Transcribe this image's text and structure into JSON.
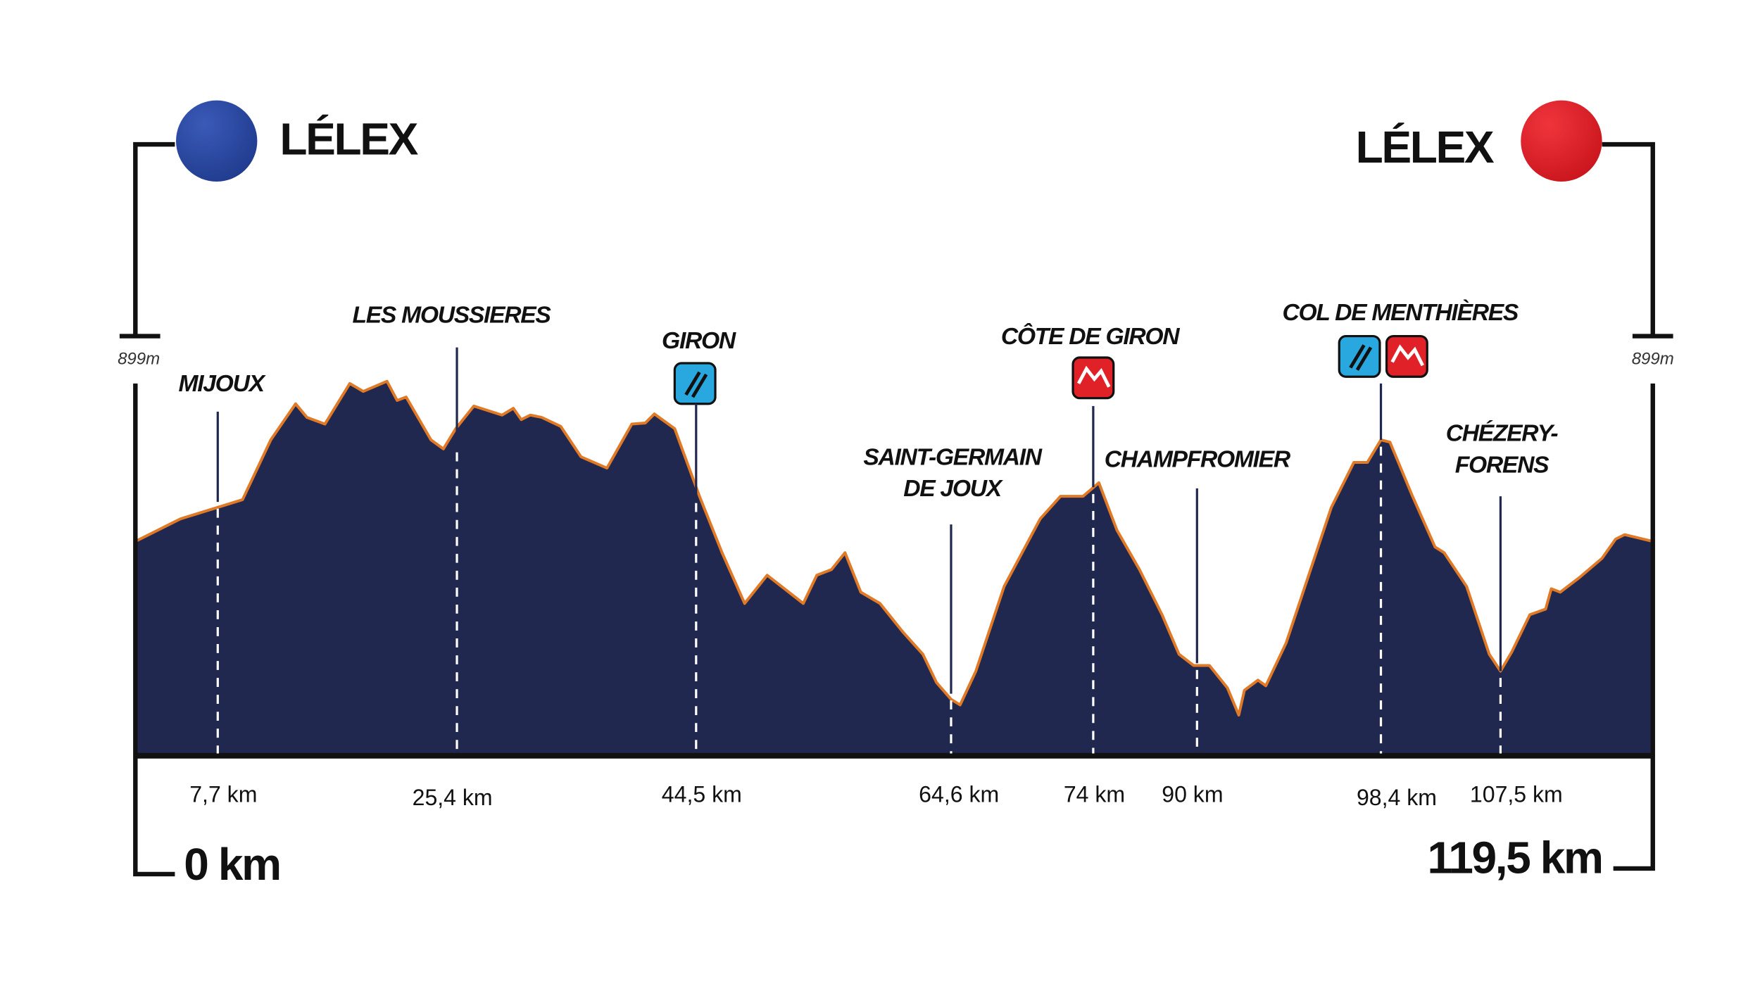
{
  "start": {
    "name": "LÉLEX",
    "distance": "0 km"
  },
  "finish": {
    "name": "LÉLEX",
    "distance": "119,5 km"
  },
  "altitude_labels": [
    "899m",
    "899m"
  ],
  "waypoints": [
    {
      "name": [
        "MIJOUX"
      ],
      "distance": "7,7 km"
    },
    {
      "name": [
        "LES MOUSSIERES"
      ],
      "distance": "25,4 km"
    },
    {
      "name": [
        "GIRON"
      ],
      "distance": "44,5 km"
    },
    {
      "name": [
        "SAINT-GERMAIN",
        "DE JOUX"
      ],
      "distance": "64,6 km"
    },
    {
      "name": [
        "CÔTE DE GIRON"
      ],
      "distance": "74 km"
    },
    {
      "name": [
        "CHAMPFROMIER"
      ],
      "distance": "90 km"
    },
    {
      "name": [
        "COL DE MENTHIÈRES"
      ],
      "distance": "98,4 km"
    },
    {
      "name": [
        "CHÉZERY-",
        "FORENS"
      ],
      "distance": "107,5 km"
    }
  ]
}
